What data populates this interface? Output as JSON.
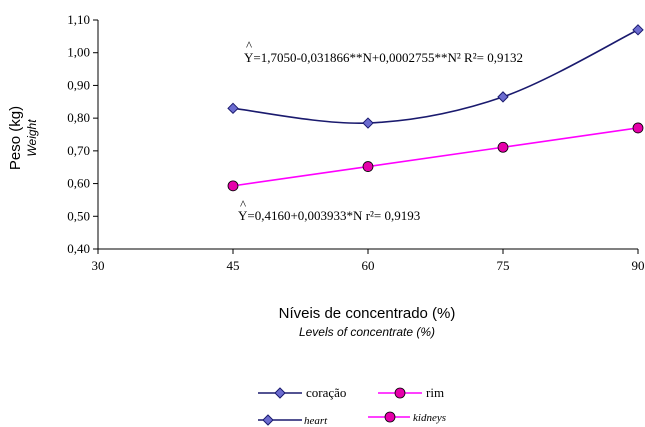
{
  "chart_data": {
    "type": "line",
    "y_title": "Peso (kg)",
    "y_subtitle": "Weight",
    "x_title": "Níveis de concentrado (%)",
    "x_subtitle": "Levels of concentrate (%)",
    "x_ticks": [
      "30",
      "45",
      "60",
      "75",
      "90"
    ],
    "y_ticks": [
      "0,40",
      "0,50",
      "0,60",
      "0,70",
      "0,80",
      "0,90",
      "1,00",
      "1,10"
    ],
    "xlim": [
      30,
      90
    ],
    "ylim": [
      0.4,
      1.1
    ],
    "grid": false,
    "series": [
      {
        "name": "coração",
        "name_en": "heart",
        "color": "#1a1a6e",
        "marker": "diamond",
        "marker_color": "#6c6cd0",
        "x": [
          45,
          60,
          75,
          90
        ],
        "y": [
          0.83,
          0.785,
          0.865,
          1.07
        ],
        "equation_hat": "^",
        "equation": "Y=1,7050-0,031866**N+0,0002755**N² R²= 0,9132"
      },
      {
        "name": "rim",
        "name_en": "kidneys",
        "color": "#ff00ff",
        "marker": "circle",
        "marker_color": "#e600aa",
        "x": [
          45,
          60,
          75,
          90
        ],
        "y": [
          0.593,
          0.652,
          0.711,
          0.77
        ],
        "equation_hat": "^",
        "equation": "Y=0,4160+0,003933*N   r²= 0,9193"
      }
    ]
  }
}
